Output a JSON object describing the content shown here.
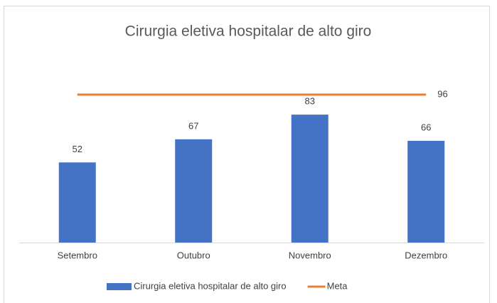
{
  "chart_data": {
    "type": "combo",
    "title": "Cirurgia eletiva hospitalar de alto giro",
    "categories": [
      "Setembro",
      "Outubro",
      "Novembro",
      "Dezembro"
    ],
    "series": [
      {
        "name": "Cirurgia eletiva hospitalar de alto giro",
        "type": "bar",
        "color": "#4472c4",
        "values": [
          52,
          67,
          83,
          66
        ]
      },
      {
        "name": "Meta",
        "type": "line",
        "color": "#ed7d31",
        "values": [
          96,
          96,
          96,
          96
        ]
      }
    ],
    "ylim": [
      0,
      120
    ],
    "legend": "bottom"
  }
}
